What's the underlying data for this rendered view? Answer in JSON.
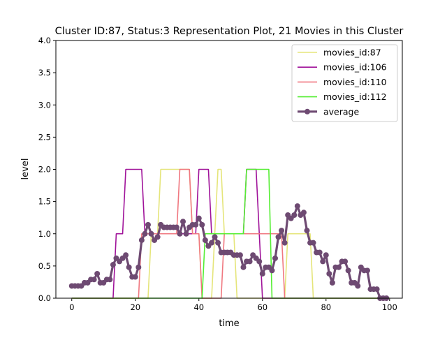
{
  "chart_data": {
    "type": "line",
    "title": "Cluster ID:87, Status:3 Representation Plot, 21 Movies in this Cluster",
    "xlabel": "time",
    "ylabel": "level",
    "xlim": [
      -5,
      104
    ],
    "ylim": [
      0,
      4
    ],
    "xticks": [
      0,
      20,
      40,
      60,
      80,
      100
    ],
    "yticks": [
      0.0,
      0.5,
      1.0,
      1.5,
      2.0,
      2.5,
      3.0,
      3.5,
      4.0
    ],
    "xtick_labels": [
      "0",
      "20",
      "40",
      "60",
      "80",
      "100"
    ],
    "ytick_labels": [
      "0.0",
      "0.5",
      "1.0",
      "1.5",
      "2.0",
      "2.5",
      "3.0",
      "3.5",
      "4.0"
    ],
    "grid": false,
    "legend_position": "top-right",
    "series": [
      {
        "name": "movies_id:87",
        "color": "#e5e57a",
        "x": [
          0,
          24,
          25,
          27,
          28,
          37,
          38,
          40,
          41,
          44,
          45,
          46,
          47,
          48,
          49,
          50,
          51,
          52,
          53,
          54,
          55,
          56,
          57,
          58,
          59,
          60,
          61,
          62,
          63,
          64,
          65,
          66,
          67,
          68,
          69,
          70,
          71,
          72,
          73,
          74,
          75,
          76,
          77,
          100
        ],
        "y": [
          0,
          0,
          1,
          1,
          2,
          2,
          1,
          1,
          0,
          0,
          1,
          2,
          2,
          1,
          1,
          1,
          1,
          0,
          0,
          0,
          0,
          0,
          0,
          0,
          0,
          0,
          0,
          0,
          0,
          0,
          0,
          0,
          0,
          1,
          1,
          1,
          1,
          1,
          1,
          1,
          1,
          0,
          0,
          0
        ]
      },
      {
        "name": "movies_id:106",
        "color": "#a0139a",
        "x": [
          0,
          13,
          14,
          16,
          17,
          22,
          23,
          39,
          40,
          43,
          44,
          54,
          55,
          58,
          59,
          60,
          100
        ],
        "y": [
          0,
          0,
          1,
          1,
          2,
          2,
          1,
          1,
          2,
          2,
          1,
          1,
          2,
          2,
          1,
          0,
          0
        ]
      },
      {
        "name": "movies_id:110",
        "color": "#f07880",
        "x": [
          0,
          21,
          22,
          33,
          34,
          37,
          38,
          40,
          41,
          47,
          48,
          66,
          67,
          68,
          100
        ],
        "y": [
          0,
          0,
          1,
          1,
          2,
          2,
          1,
          1,
          0,
          0,
          1,
          1,
          0,
          0,
          0
        ]
      },
      {
        "name": "movies_id:112",
        "color": "#55ee33",
        "x": [
          0,
          41,
          42,
          54,
          55,
          62,
          63,
          100
        ],
        "y": [
          0,
          0,
          1,
          1,
          2,
          2,
          0,
          0
        ]
      },
      {
        "name": "average",
        "color": "#6e4a72",
        "markers": true,
        "x": [
          0,
          1,
          2,
          3,
          4,
          5,
          6,
          7,
          8,
          9,
          10,
          11,
          12,
          13,
          14,
          15,
          16,
          17,
          18,
          19,
          20,
          21,
          22,
          23,
          24,
          25,
          26,
          27,
          28,
          29,
          30,
          31,
          32,
          33,
          34,
          35,
          36,
          37,
          38,
          39,
          40,
          41,
          42,
          43,
          44,
          45,
          46,
          47,
          48,
          49,
          50,
          51,
          52,
          53,
          54,
          55,
          56,
          57,
          58,
          59,
          60,
          61,
          62,
          63,
          64,
          65,
          66,
          67,
          68,
          69,
          70,
          71,
          72,
          73,
          74,
          75,
          76,
          77,
          78,
          79,
          80,
          81,
          82,
          83,
          84,
          85,
          86,
          87,
          88,
          89,
          90,
          91,
          92,
          93,
          94,
          95,
          96,
          97,
          98,
          99
        ],
        "y": [
          0.19,
          0.19,
          0.19,
          0.19,
          0.24,
          0.24,
          0.29,
          0.29,
          0.38,
          0.24,
          0.24,
          0.29,
          0.29,
          0.52,
          0.62,
          0.57,
          0.62,
          0.67,
          0.48,
          0.33,
          0.33,
          0.48,
          0.9,
          1.0,
          1.14,
          1.0,
          0.9,
          0.95,
          1.14,
          1.1,
          1.1,
          1.1,
          1.1,
          1.1,
          1.0,
          1.19,
          1.0,
          1.1,
          1.14,
          1.14,
          1.24,
          1.14,
          0.9,
          0.81,
          0.86,
          0.95,
          0.86,
          0.71,
          0.71,
          0.71,
          0.71,
          0.67,
          0.67,
          0.67,
          0.48,
          0.57,
          0.57,
          0.67,
          0.62,
          0.57,
          0.38,
          0.48,
          0.48,
          0.43,
          0.62,
          0.95,
          1.05,
          0.86,
          1.29,
          1.24,
          1.29,
          1.43,
          1.29,
          1.33,
          1.05,
          0.86,
          0.86,
          0.71,
          0.71,
          0.57,
          0.67,
          0.38,
          0.24,
          0.48,
          0.48,
          0.57,
          0.57,
          0.43,
          0.24,
          0.24,
          0.19,
          0.48,
          0.43,
          0.43,
          0.14,
          0.14,
          0.14,
          0.0,
          0.0,
          0.0
        ]
      }
    ]
  }
}
